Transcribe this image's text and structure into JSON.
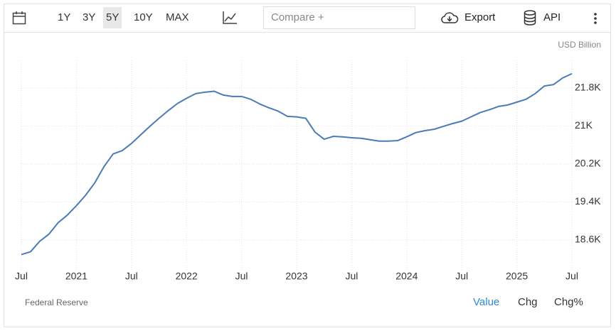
{
  "toolbar": {
    "ranges": [
      "1Y",
      "3Y",
      "5Y",
      "10Y",
      "MAX"
    ],
    "selected_range": 2,
    "compare": "Compare +",
    "export": "Export",
    "api": "API"
  },
  "footer_tabs": {
    "tabs": [
      "Value",
      "Chg",
      "Chg%"
    ],
    "active": 0
  },
  "chart_data": {
    "type": "line",
    "unit_label": "USD Billion",
    "source": "Federal Reserve",
    "color": "#4a7bb7",
    "grid": true,
    "x": [
      "2020-07",
      "2020-08",
      "2020-09",
      "2020-10",
      "2020-11",
      "2020-12",
      "2021-01",
      "2021-02",
      "2021-03",
      "2021-04",
      "2021-05",
      "2021-06",
      "2021-07",
      "2021-08",
      "2021-09",
      "2021-10",
      "2021-11",
      "2021-12",
      "2022-01",
      "2022-02",
      "2022-03",
      "2022-04",
      "2022-05",
      "2022-06",
      "2022-07",
      "2022-08",
      "2022-09",
      "2022-10",
      "2022-11",
      "2022-12",
      "2023-01",
      "2023-02",
      "2023-03",
      "2023-04",
      "2023-05",
      "2023-06",
      "2023-07",
      "2023-08",
      "2023-09",
      "2023-10",
      "2023-11",
      "2023-12",
      "2024-01",
      "2024-02",
      "2024-03",
      "2024-04",
      "2024-05",
      "2024-06",
      "2024-07",
      "2024-08",
      "2024-09",
      "2024-10",
      "2024-11",
      "2024-12",
      "2025-01",
      "2025-02",
      "2025-03",
      "2025-04",
      "2025-05",
      "2025-06",
      "2025-07"
    ],
    "values": [
      18290,
      18350,
      18570,
      18720,
      18960,
      19120,
      19320,
      19540,
      19800,
      20140,
      20410,
      20480,
      20630,
      20810,
      20990,
      21160,
      21320,
      21470,
      21580,
      21680,
      21710,
      21730,
      21650,
      21620,
      21620,
      21560,
      21460,
      21380,
      21310,
      21200,
      21190,
      21160,
      20870,
      20720,
      20780,
      20770,
      20750,
      20740,
      20710,
      20680,
      20680,
      20690,
      20770,
      20860,
      20900,
      20930,
      20990,
      21050,
      21100,
      21190,
      21280,
      21340,
      21410,
      21440,
      21500,
      21560,
      21680,
      21840,
      21870,
      22010,
      22100
    ],
    "xticks": [
      {
        "value": "2020-07",
        "label": "Jul"
      },
      {
        "value": "2021-01",
        "label": "2021"
      },
      {
        "value": "2021-07",
        "label": "Jul"
      },
      {
        "value": "2022-01",
        "label": "2022"
      },
      {
        "value": "2022-07",
        "label": "Jul"
      },
      {
        "value": "2023-01",
        "label": "2023"
      },
      {
        "value": "2023-07",
        "label": "Jul"
      },
      {
        "value": "2024-01",
        "label": "2024"
      },
      {
        "value": "2024-07",
        "label": "Jul"
      },
      {
        "value": "2025-01",
        "label": "2025"
      },
      {
        "value": "2025-07",
        "label": "Jul"
      }
    ],
    "ylim": [
      17970,
      22380
    ],
    "yticks": [
      {
        "value": 18600,
        "label": "18.6K"
      },
      {
        "value": 19400,
        "label": "19.4K"
      },
      {
        "value": 20200,
        "label": "20.2K"
      },
      {
        "value": 21000,
        "label": "21K"
      },
      {
        "value": 21800,
        "label": "21.8K"
      }
    ]
  }
}
